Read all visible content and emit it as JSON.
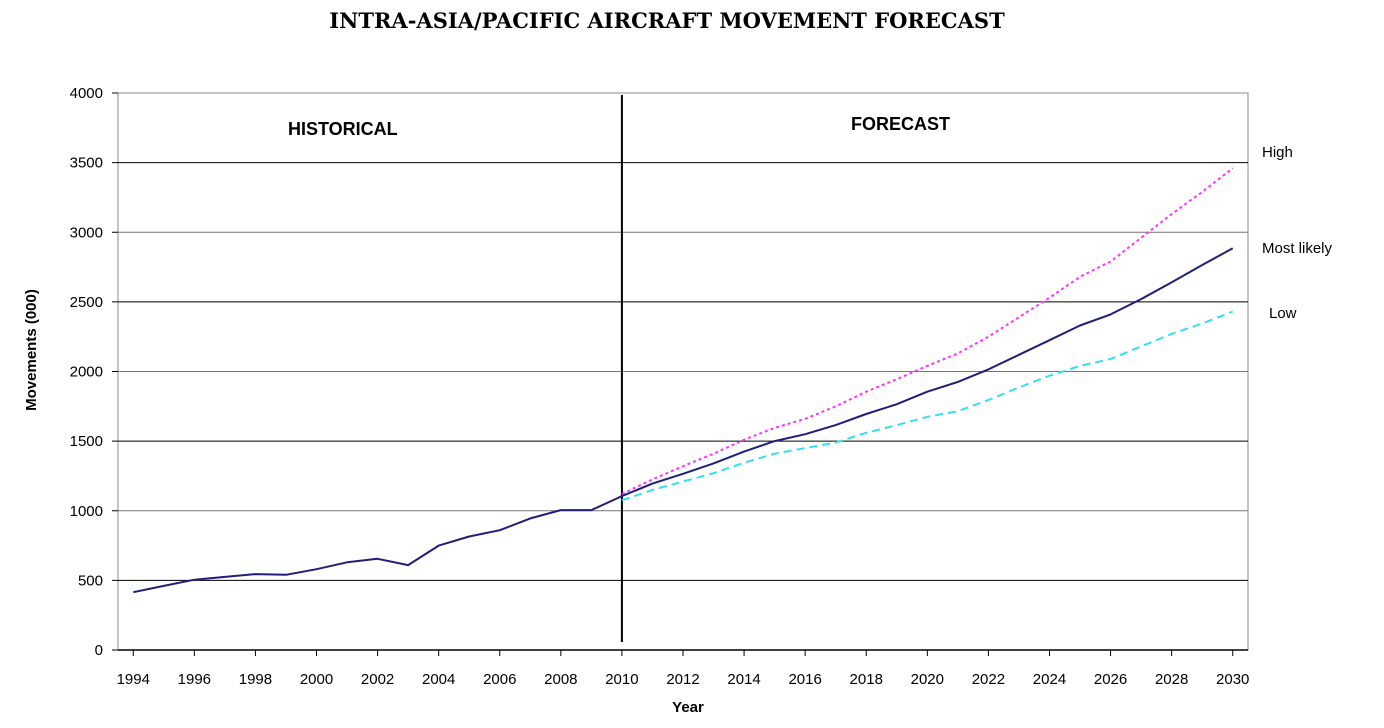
{
  "chart_data": {
    "type": "line",
    "title": "INTRA-ASIA/PACIFIC AIRCRAFT MOVEMENT FORECAST",
    "xlabel": "Year",
    "ylabel": "Movements (000)",
    "xlim": [
      1993.5,
      2030.5
    ],
    "ylim": [
      0,
      4000
    ],
    "yticks": [
      0,
      500,
      1000,
      1500,
      2000,
      2500,
      3000,
      3500,
      4000
    ],
    "xticks": [
      1994,
      1996,
      1998,
      2000,
      2002,
      2004,
      2006,
      2008,
      2010,
      2012,
      2014,
      2016,
      2018,
      2020,
      2022,
      2024,
      2026,
      2028,
      2030
    ],
    "grid": true,
    "divider_year": 2010,
    "regions": {
      "historical": "HISTORICAL",
      "forecast": "FORECAST"
    },
    "series": [
      {
        "name": "Most likely",
        "color": "#1f1f7a",
        "style": "solid",
        "x": [
          1994,
          1995,
          1996,
          1997,
          1998,
          1999,
          2000,
          2001,
          2002,
          2003,
          2004,
          2005,
          2006,
          2007,
          2008,
          2009,
          2010,
          2011,
          2012,
          2013,
          2014,
          2015,
          2016,
          2017,
          2018,
          2019,
          2020,
          2021,
          2022,
          2023,
          2024,
          2025,
          2026,
          2027,
          2028,
          2029,
          2030
        ],
        "values": [
          415,
          460,
          505,
          525,
          545,
          540,
          580,
          630,
          655,
          610,
          750,
          815,
          860,
          945,
          1005,
          1005,
          1105,
          1195,
          1265,
          1340,
          1425,
          1500,
          1550,
          1615,
          1695,
          1765,
          1855,
          1925,
          2015,
          2120,
          2225,
          2330,
          2410,
          2520,
          2640,
          2765,
          2885
        ]
      },
      {
        "name": "High",
        "color": "#ff33ff",
        "style": "dotted",
        "x": [
          2010,
          2011,
          2012,
          2013,
          2014,
          2015,
          2016,
          2017,
          2018,
          2019,
          2020,
          2021,
          2022,
          2023,
          2024,
          2025,
          2026,
          2027,
          2028,
          2029,
          2030
        ],
        "values": [
          1120,
          1225,
          1320,
          1410,
          1510,
          1595,
          1660,
          1750,
          1855,
          1945,
          2040,
          2130,
          2250,
          2390,
          2530,
          2680,
          2790,
          2960,
          3130,
          3290,
          3460
        ]
      },
      {
        "name": "Low",
        "color": "#33e0f0",
        "style": "dashed",
        "x": [
          2010,
          2011,
          2012,
          2013,
          2014,
          2015,
          2016,
          2017,
          2018,
          2019,
          2020,
          2021,
          2022,
          2023,
          2024,
          2025,
          2026,
          2027,
          2028,
          2029,
          2030
        ],
        "values": [
          1075,
          1150,
          1210,
          1270,
          1345,
          1410,
          1450,
          1490,
          1560,
          1615,
          1675,
          1715,
          1795,
          1885,
          1970,
          2040,
          2090,
          2180,
          2270,
          2345,
          2430
        ]
      }
    ],
    "legend_labels": [
      "High",
      "Most likely",
      "Low"
    ]
  }
}
